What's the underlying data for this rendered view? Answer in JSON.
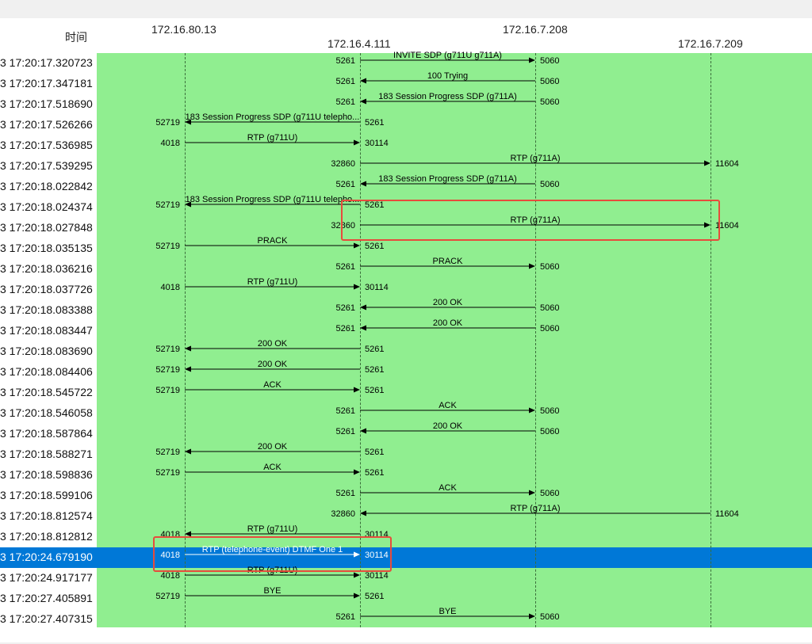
{
  "header": {
    "time_col_label": "时间",
    "hosts": [
      "172.16.80.13",
      "172.16.4.111",
      "172.16.7.208",
      "172.16.7.209"
    ]
  },
  "colors": {
    "flow_background": "#90ee90",
    "selected_row": "#0078d7",
    "highlight_box": "#e74c3c",
    "arrow": "#000000"
  },
  "selected_row_index": 24,
  "rows": [
    {
      "time": "3 17:20:17.320723",
      "from": 1,
      "to": 2,
      "label": "INVITE SDP (g711U g711A)",
      "src_port": "5261",
      "dst_port": "5060"
    },
    {
      "time": "3 17:20:17.347181",
      "from": 2,
      "to": 1,
      "label": "100 Trying",
      "src_port": "5060",
      "dst_port": "5261"
    },
    {
      "time": "3 17:20:17.518690",
      "from": 2,
      "to": 1,
      "label": "183 Session Progress SDP (g711A)",
      "src_port": "5060",
      "dst_port": "5261"
    },
    {
      "time": "3 17:20:17.526266",
      "from": 1,
      "to": 0,
      "label": "183 Session Progress SDP (g711U telepho...",
      "src_port": "5261",
      "dst_port": "52719"
    },
    {
      "time": "3 17:20:17.536985",
      "from": 0,
      "to": 1,
      "label": "RTP (g711U)",
      "src_port": "4018",
      "dst_port": "30114"
    },
    {
      "time": "3 17:20:17.539295",
      "from": 1,
      "to": 3,
      "label": "RTP (g711A)",
      "src_port": "32860",
      "dst_port": "11604"
    },
    {
      "time": "3 17:20:18.022842",
      "from": 2,
      "to": 1,
      "label": "183 Session Progress SDP (g711A)",
      "src_port": "5060",
      "dst_port": "5261"
    },
    {
      "time": "3 17:20:18.024374",
      "from": 1,
      "to": 0,
      "label": "183 Session Progress SDP (g711U telepho...",
      "src_port": "5261",
      "dst_port": "52719"
    },
    {
      "time": "3 17:20:18.027848",
      "from": 1,
      "to": 3,
      "label": "RTP (g711A)",
      "src_port": "32860",
      "dst_port": "11604"
    },
    {
      "time": "3 17:20:18.035135",
      "from": 0,
      "to": 1,
      "label": "PRACK",
      "src_port": "52719",
      "dst_port": "5261"
    },
    {
      "time": "3 17:20:18.036216",
      "from": 1,
      "to": 2,
      "label": "PRACK",
      "src_port": "5261",
      "dst_port": "5060"
    },
    {
      "time": "3 17:20:18.037726",
      "from": 0,
      "to": 1,
      "label": "RTP (g711U)",
      "src_port": "4018",
      "dst_port": "30114"
    },
    {
      "time": "3 17:20:18.083388",
      "from": 2,
      "to": 1,
      "label": "200 OK",
      "src_port": "5060",
      "dst_port": "5261"
    },
    {
      "time": "3 17:20:18.083447",
      "from": 2,
      "to": 1,
      "label": "200 OK",
      "src_port": "5060",
      "dst_port": "5261"
    },
    {
      "time": "3 17:20:18.083690",
      "from": 1,
      "to": 0,
      "label": "200 OK",
      "src_port": "5261",
      "dst_port": "52719"
    },
    {
      "time": "3 17:20:18.084406",
      "from": 1,
      "to": 0,
      "label": "200 OK",
      "src_port": "5261",
      "dst_port": "52719"
    },
    {
      "time": "3 17:20:18.545722",
      "from": 0,
      "to": 1,
      "label": "ACK",
      "src_port": "52719",
      "dst_port": "5261"
    },
    {
      "time": "3 17:20:18.546058",
      "from": 1,
      "to": 2,
      "label": "ACK",
      "src_port": "5261",
      "dst_port": "5060"
    },
    {
      "time": "3 17:20:18.587864",
      "from": 2,
      "to": 1,
      "label": "200 OK",
      "src_port": "5060",
      "dst_port": "5261"
    },
    {
      "time": "3 17:20:18.588271",
      "from": 1,
      "to": 0,
      "label": "200 OK",
      "src_port": "5261",
      "dst_port": "52719"
    },
    {
      "time": "3 17:20:18.598836",
      "from": 0,
      "to": 1,
      "label": "ACK",
      "src_port": "52719",
      "dst_port": "5261"
    },
    {
      "time": "3 17:20:18.599106",
      "from": 1,
      "to": 2,
      "label": "ACK",
      "src_port": "5261",
      "dst_port": "5060"
    },
    {
      "time": "3 17:20:18.812574",
      "from": 3,
      "to": 1,
      "label": "RTP (g711A)",
      "src_port": "11604",
      "dst_port": "32860"
    },
    {
      "time": "3 17:20:18.812812",
      "from": 1,
      "to": 0,
      "label": "RTP (g711U)",
      "src_port": "30114",
      "dst_port": "4018"
    },
    {
      "time": "3 17:20:24.679190",
      "from": 0,
      "to": 1,
      "label": "RTP (telephone-event) DTMF One 1",
      "src_port": "4018",
      "dst_port": "30114"
    },
    {
      "time": "3 17:20:24.917177",
      "from": 0,
      "to": 1,
      "label": "RTP (g711U)",
      "src_port": "4018",
      "dst_port": "30114"
    },
    {
      "time": "3 17:20:27.405891",
      "from": 0,
      "to": 1,
      "label": "BYE",
      "src_port": "52719",
      "dst_port": "5261"
    },
    {
      "time": "3 17:20:27.407315",
      "from": 1,
      "to": 2,
      "label": "BYE",
      "src_port": "5261",
      "dst_port": "5060"
    }
  ]
}
